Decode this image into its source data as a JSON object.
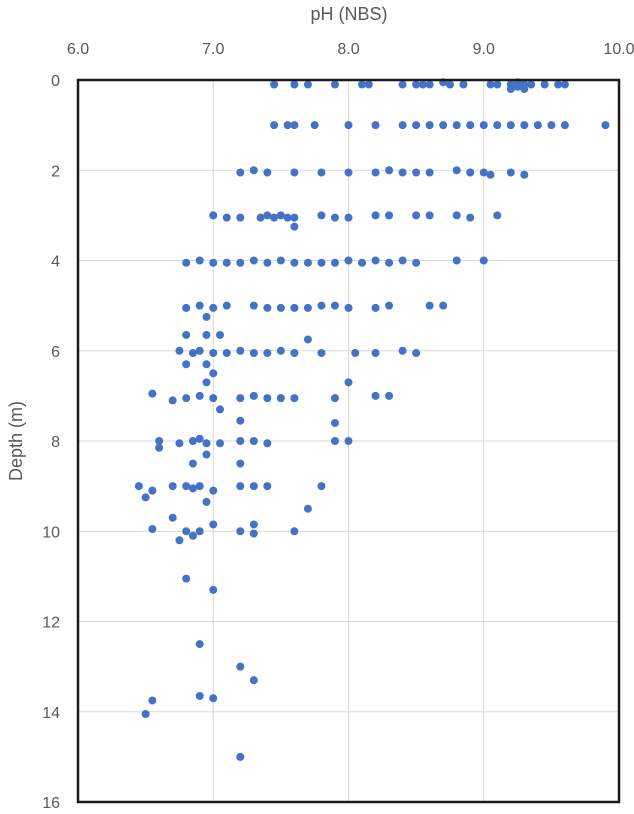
{
  "chart_data": {
    "type": "scatter",
    "title": "",
    "xlabel": "pH (NBS)",
    "ylabel": "Depth (m)",
    "xlim": [
      6.0,
      10.0
    ],
    "ylim": [
      0,
      16
    ],
    "y_inverted": true,
    "x_axis_position": "top",
    "x_ticks": [
      "6.0",
      "7.0",
      "8.0",
      "9.0",
      "10.0"
    ],
    "y_ticks": [
      "0",
      "2",
      "4",
      "6",
      "8",
      "10",
      "12",
      "14",
      "16"
    ],
    "grid": true,
    "legend": "none",
    "marker_color": "#4472C4",
    "series": [
      {
        "points": [
          [
            7.45,
            0.1
          ],
          [
            7.6,
            0.1
          ],
          [
            7.7,
            0.1
          ],
          [
            7.9,
            0.1
          ],
          [
            8.1,
            0.1
          ],
          [
            8.15,
            0.1
          ],
          [
            8.4,
            0.1
          ],
          [
            8.5,
            0.1
          ],
          [
            8.55,
            0.1
          ],
          [
            8.6,
            0.1
          ],
          [
            8.7,
            0.05
          ],
          [
            8.75,
            0.1
          ],
          [
            8.85,
            0.1
          ],
          [
            9.05,
            0.1
          ],
          [
            9.1,
            0.1
          ],
          [
            9.2,
            0.1
          ],
          [
            9.25,
            0.05
          ],
          [
            9.3,
            0.1
          ],
          [
            9.35,
            0.1
          ],
          [
            9.45,
            0.1
          ],
          [
            9.55,
            0.1
          ],
          [
            9.6,
            0.1
          ],
          [
            9.25,
            0.15
          ],
          [
            9.3,
            0.2
          ],
          [
            9.2,
            0.2
          ],
          [
            7.45,
            1.0
          ],
          [
            7.55,
            1.0
          ],
          [
            7.6,
            1.0
          ],
          [
            7.75,
            1.0
          ],
          [
            8.0,
            1.0
          ],
          [
            8.2,
            1.0
          ],
          [
            8.4,
            1.0
          ],
          [
            8.5,
            1.0
          ],
          [
            8.6,
            1.0
          ],
          [
            8.7,
            1.0
          ],
          [
            8.8,
            1.0
          ],
          [
            8.9,
            1.0
          ],
          [
            9.0,
            1.0
          ],
          [
            9.1,
            1.0
          ],
          [
            9.2,
            1.0
          ],
          [
            9.3,
            1.0
          ],
          [
            9.4,
            1.0
          ],
          [
            9.5,
            1.0
          ],
          [
            9.6,
            1.0
          ],
          [
            9.9,
            1.0
          ],
          [
            7.2,
            2.05
          ],
          [
            7.3,
            2.0
          ],
          [
            7.4,
            2.05
          ],
          [
            7.6,
            2.05
          ],
          [
            7.8,
            2.05
          ],
          [
            8.0,
            2.05
          ],
          [
            8.2,
            2.05
          ],
          [
            8.3,
            2.0
          ],
          [
            8.4,
            2.05
          ],
          [
            8.5,
            2.05
          ],
          [
            8.6,
            2.05
          ],
          [
            8.8,
            2.0
          ],
          [
            8.9,
            2.05
          ],
          [
            9.0,
            2.05
          ],
          [
            9.05,
            2.1
          ],
          [
            9.2,
            2.05
          ],
          [
            9.3,
            2.1
          ],
          [
            7.0,
            3.0
          ],
          [
            7.1,
            3.05
          ],
          [
            7.2,
            3.05
          ],
          [
            7.35,
            3.05
          ],
          [
            7.4,
            3.0
          ],
          [
            7.45,
            3.05
          ],
          [
            7.5,
            3.0
          ],
          [
            7.55,
            3.05
          ],
          [
            7.6,
            3.05
          ],
          [
            7.6,
            3.25
          ],
          [
            7.8,
            3.0
          ],
          [
            7.9,
            3.05
          ],
          [
            8.0,
            3.05
          ],
          [
            8.2,
            3.0
          ],
          [
            8.3,
            3.0
          ],
          [
            8.5,
            3.0
          ],
          [
            8.6,
            3.0
          ],
          [
            8.8,
            3.0
          ],
          [
            8.9,
            3.05
          ],
          [
            9.1,
            3.0
          ],
          [
            6.8,
            4.05
          ],
          [
            6.9,
            4.0
          ],
          [
            7.0,
            4.05
          ],
          [
            7.1,
            4.05
          ],
          [
            7.2,
            4.05
          ],
          [
            7.3,
            4.0
          ],
          [
            7.4,
            4.05
          ],
          [
            7.5,
            4.0
          ],
          [
            7.6,
            4.05
          ],
          [
            7.7,
            4.05
          ],
          [
            7.8,
            4.05
          ],
          [
            7.9,
            4.05
          ],
          [
            8.0,
            4.0
          ],
          [
            8.1,
            4.05
          ],
          [
            8.2,
            4.0
          ],
          [
            8.3,
            4.05
          ],
          [
            8.4,
            4.0
          ],
          [
            8.5,
            4.05
          ],
          [
            8.8,
            4.0
          ],
          [
            9.0,
            4.0
          ],
          [
            6.8,
            5.05
          ],
          [
            6.9,
            5.0
          ],
          [
            6.95,
            5.25
          ],
          [
            7.0,
            5.05
          ],
          [
            7.1,
            5.0
          ],
          [
            7.3,
            5.0
          ],
          [
            7.4,
            5.05
          ],
          [
            7.5,
            5.05
          ],
          [
            7.6,
            5.05
          ],
          [
            7.7,
            5.05
          ],
          [
            7.8,
            5.0
          ],
          [
            7.9,
            5.0
          ],
          [
            8.0,
            5.05
          ],
          [
            8.2,
            5.05
          ],
          [
            8.3,
            5.0
          ],
          [
            8.6,
            5.0
          ],
          [
            8.7,
            5.0
          ],
          [
            6.75,
            6.0
          ],
          [
            6.8,
            5.65
          ],
          [
            6.85,
            6.05
          ],
          [
            6.8,
            6.3
          ],
          [
            6.9,
            6.0
          ],
          [
            6.95,
            5.65
          ],
          [
            7.05,
            5.65
          ],
          [
            7.0,
            6.05
          ],
          [
            7.1,
            6.05
          ],
          [
            7.2,
            6.0
          ],
          [
            7.3,
            6.05
          ],
          [
            7.4,
            6.05
          ],
          [
            7.5,
            6.0
          ],
          [
            7.7,
            5.75
          ],
          [
            7.6,
            6.05
          ],
          [
            7.8,
            6.05
          ],
          [
            8.05,
            6.05
          ],
          [
            8.2,
            6.05
          ],
          [
            8.4,
            6.0
          ],
          [
            8.5,
            6.05
          ],
          [
            6.95,
            6.3
          ],
          [
            7.0,
            6.5
          ],
          [
            6.55,
            6.95
          ],
          [
            6.7,
            7.1
          ],
          [
            6.8,
            7.05
          ],
          [
            6.9,
            7.0
          ],
          [
            6.95,
            6.7
          ],
          [
            7.0,
            7.05
          ],
          [
            7.05,
            7.3
          ],
          [
            7.2,
            7.05
          ],
          [
            7.3,
            7.0
          ],
          [
            7.4,
            7.05
          ],
          [
            7.5,
            7.05
          ],
          [
            7.6,
            7.05
          ],
          [
            7.9,
            7.05
          ],
          [
            8.0,
            6.7
          ],
          [
            8.2,
            7.0
          ],
          [
            8.3,
            7.0
          ],
          [
            6.6,
            8.0
          ],
          [
            6.75,
            8.05
          ],
          [
            6.85,
            8.0
          ],
          [
            6.9,
            7.95
          ],
          [
            6.95,
            8.05
          ],
          [
            7.05,
            8.05
          ],
          [
            7.2,
            7.55
          ],
          [
            7.2,
            8.0
          ],
          [
            7.3,
            8.0
          ],
          [
            7.4,
            8.05
          ],
          [
            7.9,
            7.6
          ],
          [
            7.9,
            8.0
          ],
          [
            8.0,
            8.0
          ],
          [
            6.6,
            8.15
          ],
          [
            6.95,
            8.3
          ],
          [
            6.85,
            8.5
          ],
          [
            7.2,
            8.5
          ],
          [
            6.45,
            9.0
          ],
          [
            6.5,
            9.25
          ],
          [
            6.55,
            9.1
          ],
          [
            6.7,
            9.0
          ],
          [
            6.8,
            9.0
          ],
          [
            6.85,
            9.05
          ],
          [
            6.9,
            9.0
          ],
          [
            7.0,
            9.1
          ],
          [
            7.2,
            9.0
          ],
          [
            7.3,
            9.0
          ],
          [
            7.4,
            9.0
          ],
          [
            7.8,
            9.0
          ],
          [
            6.95,
            9.35
          ],
          [
            7.7,
            9.5
          ],
          [
            6.55,
            9.95
          ],
          [
            6.7,
            9.7
          ],
          [
            6.75,
            10.2
          ],
          [
            6.8,
            10.0
          ],
          [
            6.85,
            10.1
          ],
          [
            6.9,
            10.0
          ],
          [
            7.0,
            9.85
          ],
          [
            7.2,
            10.0
          ],
          [
            7.3,
            9.85
          ],
          [
            7.3,
            10.05
          ],
          [
            7.6,
            10.0
          ],
          [
            6.8,
            11.05
          ],
          [
            7.0,
            11.3
          ],
          [
            6.9,
            12.5
          ],
          [
            7.2,
            13.0
          ],
          [
            7.3,
            13.3
          ],
          [
            6.9,
            13.65
          ],
          [
            7.0,
            13.7
          ],
          [
            6.55,
            13.75
          ],
          [
            6.5,
            14.05
          ],
          [
            7.2,
            15.0
          ]
        ]
      }
    ]
  }
}
